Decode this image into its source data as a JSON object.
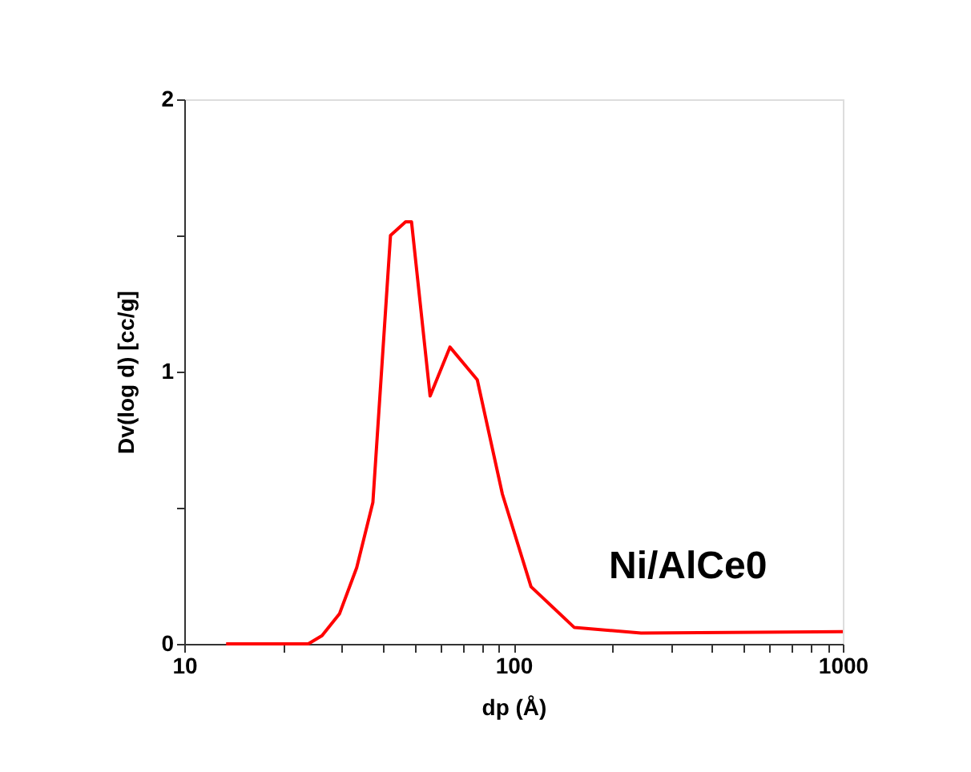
{
  "chart_data": {
    "type": "line",
    "xlabel": "dp (Å)",
    "ylabel": "Dv(log d)  [cc/g]",
    "log": "x",
    "legend": false,
    "grid": false,
    "marker": "none",
    "line_style": "solid",
    "xlim": [
      10,
      1000
    ],
    "ylim": [
      0,
      2
    ],
    "xticks": [
      10,
      {
        "value": 20,
        "label": null
      },
      {
        "value": 30,
        "label": null
      },
      {
        "value": 40,
        "label": null
      },
      {
        "value": 50,
        "label": null
      },
      {
        "value": 60,
        "label": null
      },
      {
        "value": 70,
        "label": null
      },
      {
        "value": 80,
        "label": null
      },
      {
        "value": 90,
        "label": null
      },
      100,
      {
        "value": 200,
        "label": null
      },
      {
        "value": 300,
        "label": null
      },
      {
        "value": 400,
        "label": null
      },
      {
        "value": 500,
        "label": null
      },
      {
        "value": 600,
        "label": null
      },
      {
        "value": 700,
        "label": null
      },
      {
        "value": 800,
        "label": null
      },
      {
        "value": 900,
        "label": null
      },
      1000
    ],
    "yticks": [
      0,
      {
        "value": 0.5,
        "label": null
      },
      1,
      {
        "value": 1.5,
        "label": null
      },
      2
    ],
    "series": [
      {
        "name": "Ni/AlCe0",
        "color": "#ff0000",
        "x": [
          13.4,
          23.8,
          26.2,
          29.6,
          33.4,
          37.4,
          42.3,
          47.0,
          49.0,
          55.8,
          64.1,
          77.6,
          92.5,
          113,
          153,
          244,
          1000
        ],
        "values": [
          0,
          0,
          0.03,
          0.11,
          0.28,
          0.52,
          1.5,
          1.55,
          1.55,
          0.91,
          1.09,
          0.97,
          0.55,
          0.21,
          0.06,
          0.04,
          0.045
        ]
      }
    ]
  }
}
